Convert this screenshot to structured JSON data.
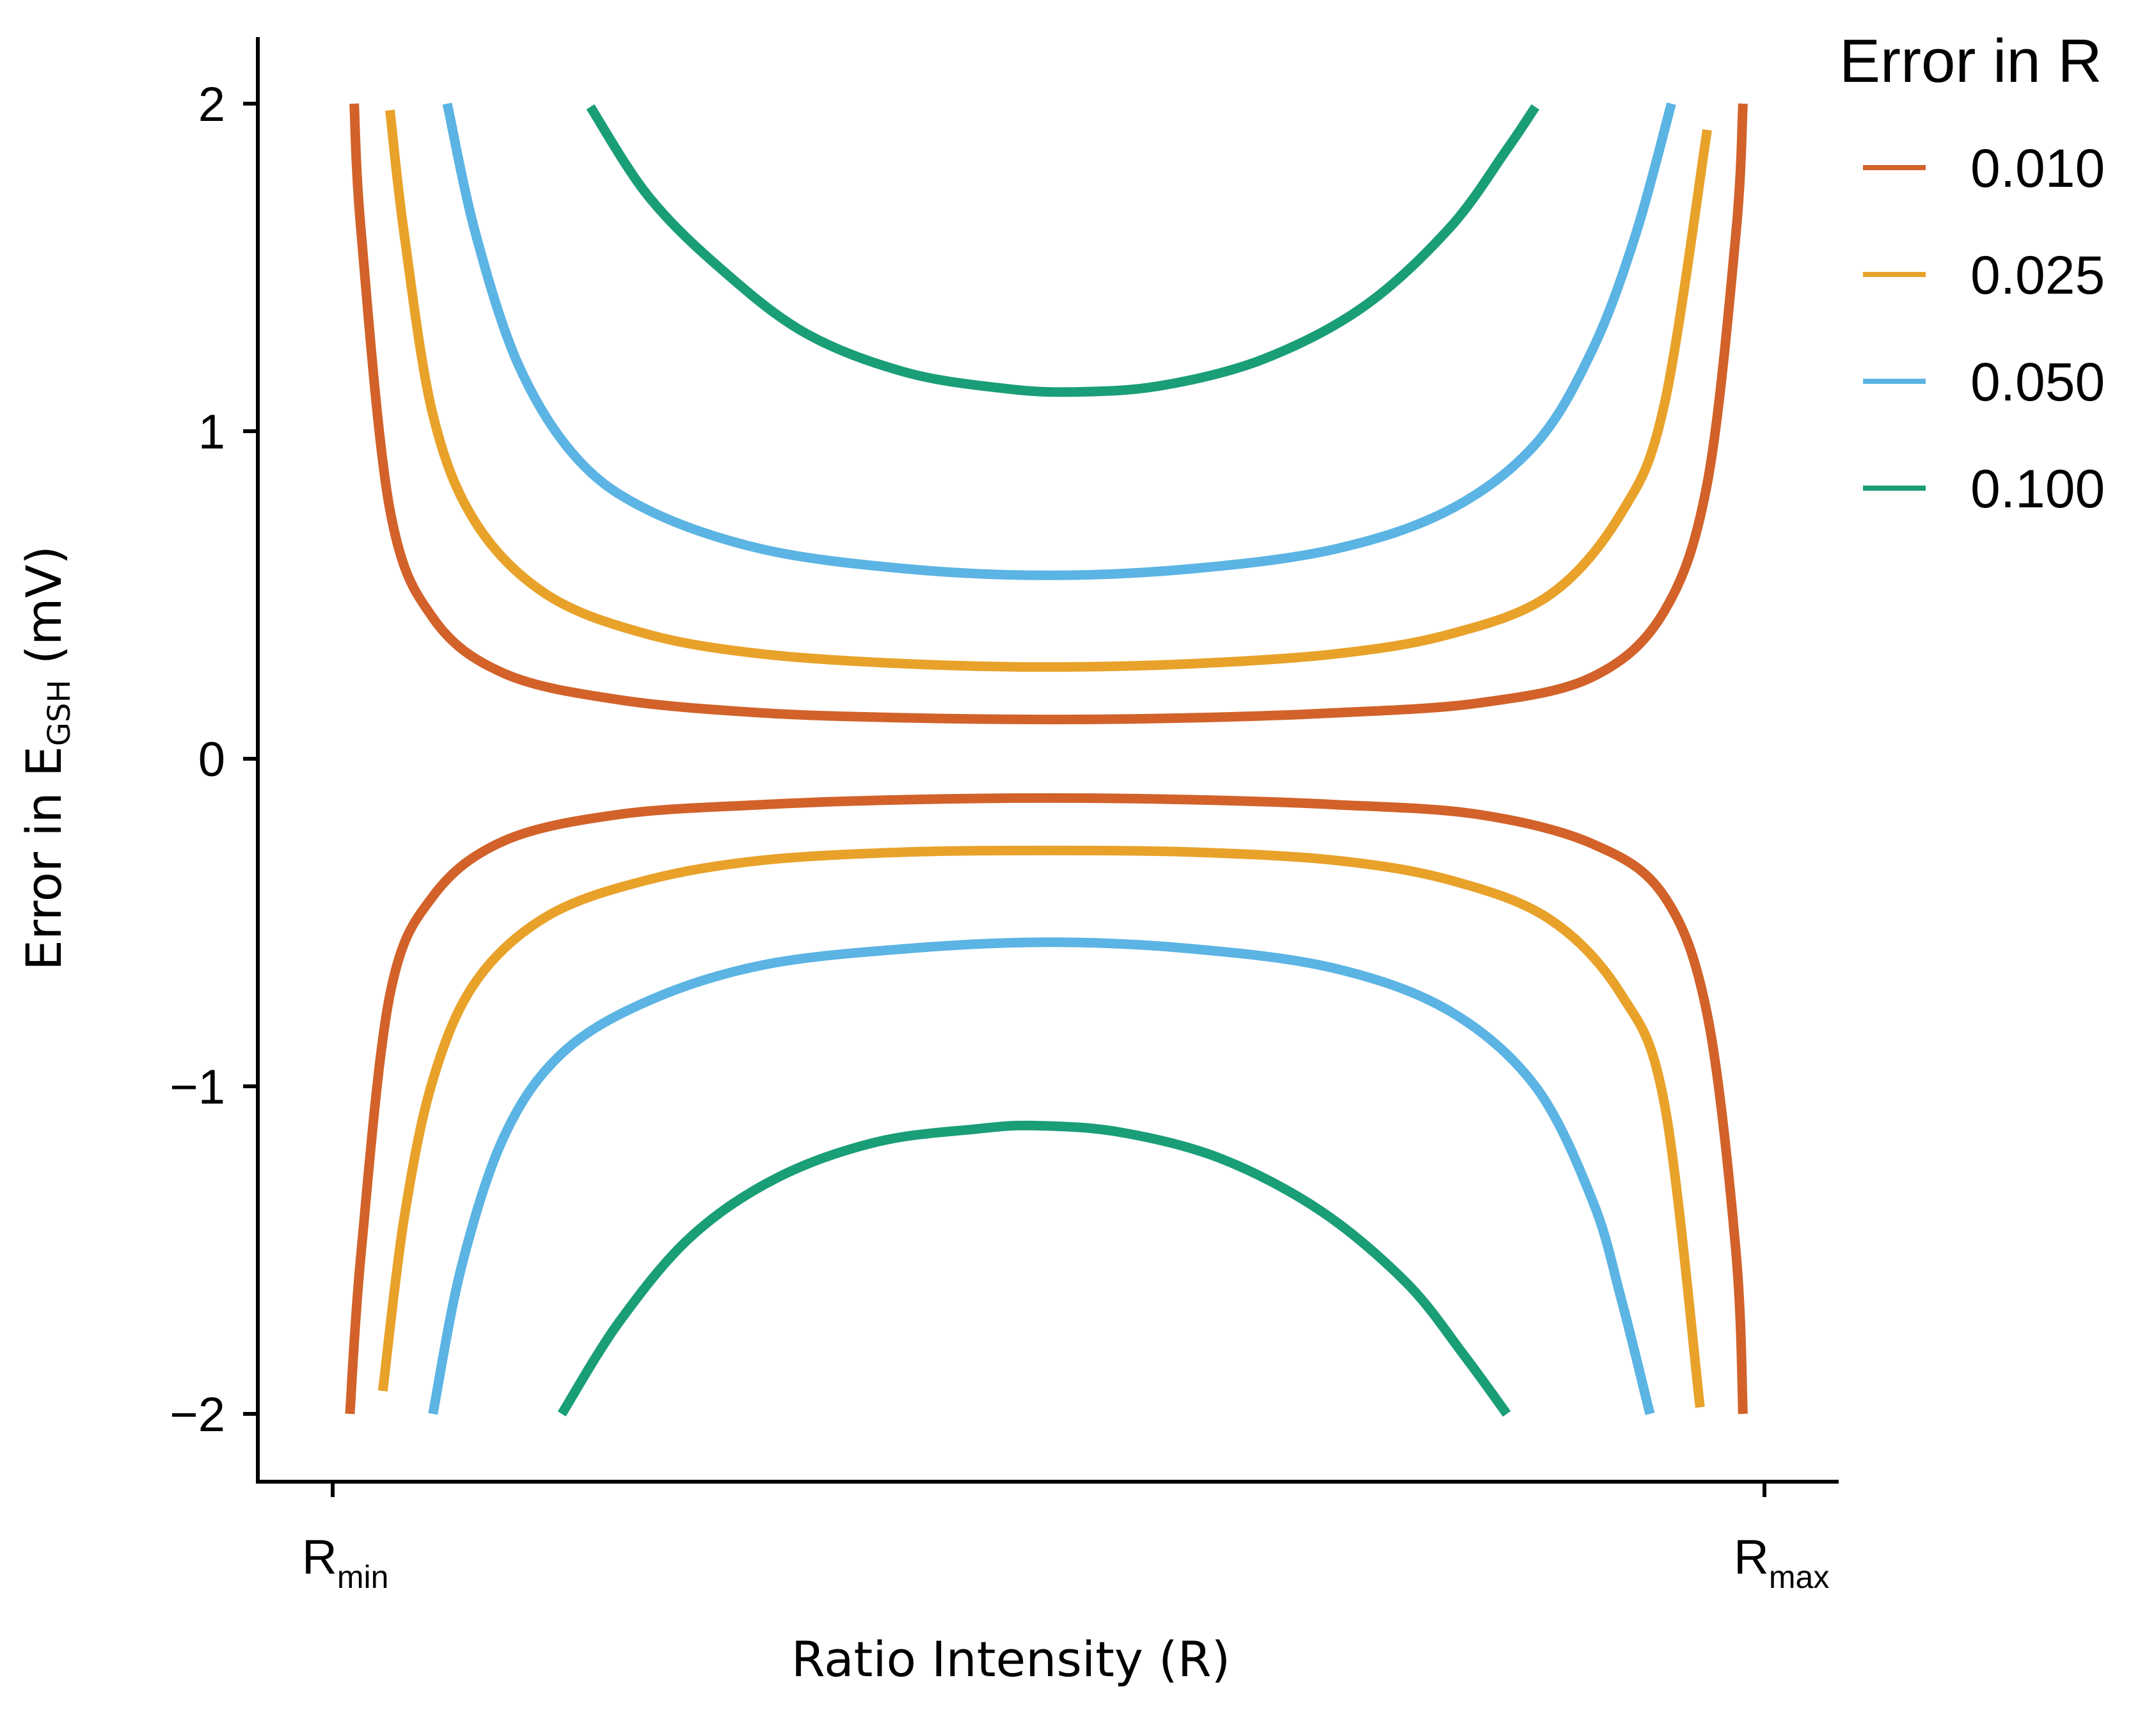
{
  "chart_data": {
    "type": "line",
    "xlabel": "Ratio Intensity (R)",
    "ylabel_main": "Error in E",
    "ylabel_sub": "GSH",
    "ylabel_unit": " (mV)",
    "x_ticks": [
      {
        "main": "R",
        "sub": "min",
        "value": 0.0
      },
      {
        "main": "R",
        "sub": "max",
        "value": 1.0
      }
    ],
    "xlim": [
      -0.05,
      1.05
    ],
    "ylim": [
      -2.2,
      2.2
    ],
    "y_ticks": [
      2,
      1,
      0,
      -1,
      -2
    ],
    "y_tick_labels": [
      "2",
      "1",
      "0",
      "−1",
      "−2"
    ],
    "grid": false,
    "legend": {
      "title": "Error in R",
      "placement": "right-top"
    },
    "series": [
      {
        "name": "0.010",
        "color": "#D2622A",
        "upper": {
          "x": [
            0.015,
            0.02,
            0.04,
            0.07,
            0.12,
            0.2,
            0.3,
            0.4,
            0.5,
            0.6,
            0.7,
            0.8,
            0.88,
            0.93,
            0.96,
            0.98,
            0.985
          ],
          "y": [
            2.0,
            1.6,
            0.76,
            0.43,
            0.26,
            0.18,
            0.14,
            0.125,
            0.12,
            0.125,
            0.14,
            0.17,
            0.25,
            0.45,
            0.84,
            1.6,
            2.0
          ]
        },
        "lower": {
          "x": [
            0.012,
            0.02,
            0.04,
            0.07,
            0.12,
            0.2,
            0.3,
            0.4,
            0.5,
            0.6,
            0.7,
            0.8,
            0.88,
            0.93,
            0.96,
            0.98,
            0.985
          ],
          "y": [
            -2.0,
            -1.5,
            -0.72,
            -0.42,
            -0.25,
            -0.17,
            -0.14,
            -0.125,
            -0.12,
            -0.125,
            -0.14,
            -0.17,
            -0.26,
            -0.42,
            -0.78,
            -1.5,
            -2.0
          ]
        }
      },
      {
        "name": "0.025",
        "color": "#E8A22A",
        "upper": {
          "x": [
            0.04,
            0.05,
            0.07,
            0.1,
            0.15,
            0.22,
            0.3,
            0.4,
            0.5,
            0.6,
            0.7,
            0.78,
            0.85,
            0.9,
            0.93,
            0.96
          ],
          "y": [
            1.98,
            1.6,
            1.05,
            0.72,
            0.5,
            0.38,
            0.32,
            0.29,
            0.28,
            0.29,
            0.32,
            0.38,
            0.5,
            0.75,
            1.08,
            1.92
          ]
        },
        "lower": {
          "x": [
            0.035,
            0.05,
            0.07,
            0.1,
            0.15,
            0.22,
            0.3,
            0.4,
            0.5,
            0.6,
            0.7,
            0.78,
            0.85,
            0.9,
            0.93,
            0.955
          ],
          "y": [
            -1.93,
            -1.4,
            -0.98,
            -0.68,
            -0.48,
            -0.37,
            -0.31,
            -0.285,
            -0.28,
            -0.285,
            -0.31,
            -0.37,
            -0.49,
            -0.72,
            -1.05,
            -1.98
          ]
        }
      },
      {
        "name": "0.050",
        "color": "#5BB4E3",
        "upper": {
          "x": [
            0.08,
            0.1,
            0.13,
            0.17,
            0.22,
            0.3,
            0.4,
            0.5,
            0.6,
            0.7,
            0.78,
            0.84,
            0.88,
            0.91,
            0.935
          ],
          "y": [
            2.0,
            1.6,
            1.2,
            0.92,
            0.76,
            0.64,
            0.58,
            0.56,
            0.58,
            0.64,
            0.76,
            0.96,
            1.25,
            1.6,
            2.0
          ]
        },
        "lower": {
          "x": [
            0.07,
            0.09,
            0.12,
            0.16,
            0.22,
            0.3,
            0.4,
            0.5,
            0.6,
            0.7,
            0.78,
            0.84,
            0.88,
            0.9,
            0.92
          ],
          "y": [
            -2.0,
            -1.55,
            -1.15,
            -0.9,
            -0.74,
            -0.63,
            -0.58,
            -0.56,
            -0.58,
            -0.64,
            -0.77,
            -1.0,
            -1.35,
            -1.65,
            -2.0
          ]
        }
      },
      {
        "name": "0.100",
        "color": "#1A9E77",
        "upper": {
          "x": [
            0.18,
            0.22,
            0.27,
            0.33,
            0.4,
            0.47,
            0.52,
            0.58,
            0.65,
            0.72,
            0.78,
            0.82,
            0.84
          ],
          "y": [
            1.99,
            1.72,
            1.5,
            1.3,
            1.18,
            1.13,
            1.12,
            1.14,
            1.22,
            1.38,
            1.62,
            1.86,
            1.99
          ]
        },
        "lower": {
          "x": [
            0.16,
            0.2,
            0.25,
            0.31,
            0.38,
            0.45,
            0.49,
            0.55,
            0.62,
            0.69,
            0.75,
            0.79,
            0.82
          ],
          "y": [
            -2.0,
            -1.72,
            -1.46,
            -1.28,
            -1.17,
            -1.13,
            -1.12,
            -1.14,
            -1.22,
            -1.38,
            -1.6,
            -1.82,
            -2.0
          ]
        }
      }
    ]
  }
}
